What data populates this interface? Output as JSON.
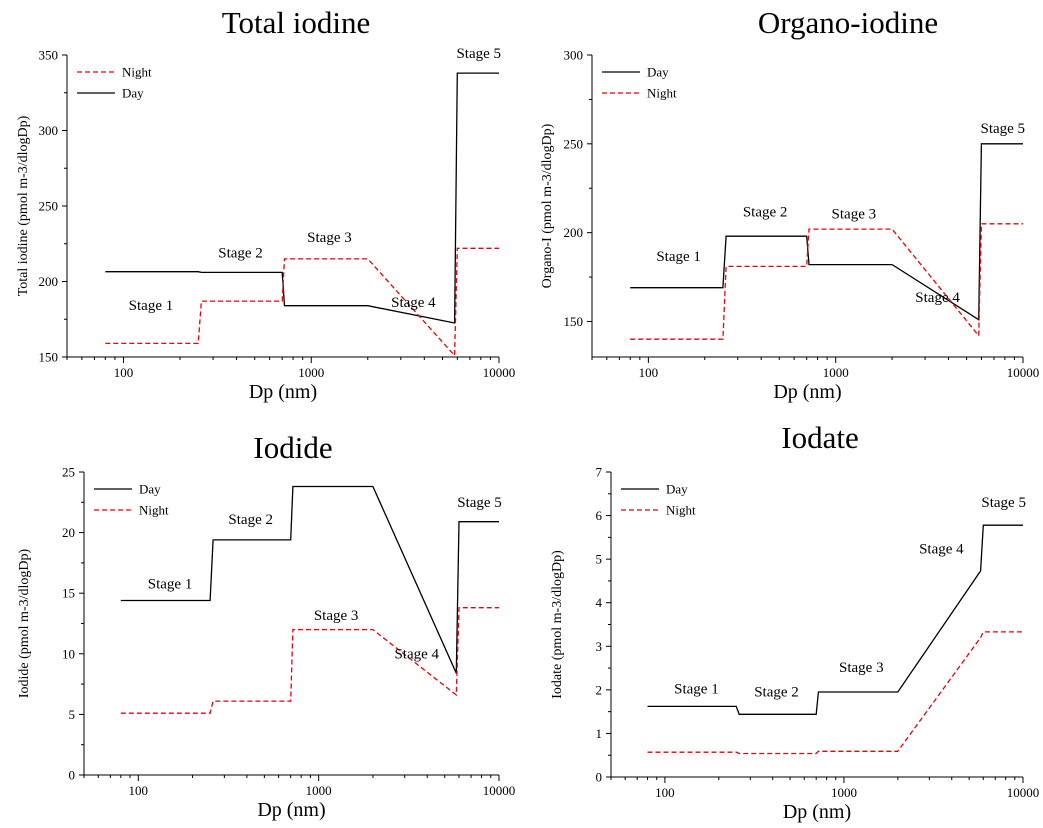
{
  "chart_data": [
    {
      "type": "line",
      "title": "Total iodine",
      "xlabel": "Dp (nm)",
      "ylabel": "Total iodine (pmol m-3/dlogDp)",
      "xscale": "log",
      "xlim": [
        50,
        10000
      ],
      "ylim": [
        150,
        350
      ],
      "xticks": [
        100,
        1000,
        10000
      ],
      "xtick_labels": [
        "100",
        "1000",
        "10000"
      ],
      "yticks": [
        150,
        200,
        250,
        300,
        350
      ],
      "ytick_labels": [
        "150",
        "200",
        "250",
        "300",
        "350"
      ],
      "legend_position": "top-left",
      "legend_order": [
        "Night",
        "Day"
      ],
      "series": [
        {
          "name": "Day",
          "style": "solid",
          "color": "#000000",
          "x": [
            80,
            250,
            260,
            700,
            720,
            2000,
            5800,
            6000,
            10000
          ],
          "y": [
            206.5,
            206.5,
            206,
            206,
            184,
            184,
            172.5,
            338,
            338
          ]
        },
        {
          "name": "Night",
          "style": "dashed",
          "color": "#e8000b",
          "x": [
            80,
            250,
            260,
            700,
            720,
            2000,
            5800,
            6000,
            10000
          ],
          "y": [
            159,
            159,
            187,
            187,
            215,
            215,
            151,
            222,
            222
          ]
        }
      ],
      "annotations": [
        {
          "text": "Stage 1",
          "x": 140,
          "y": 181
        },
        {
          "text": "Stage 2",
          "x": 420,
          "y": 216
        },
        {
          "text": "Stage 3",
          "x": 1250,
          "y": 226
        },
        {
          "text": "Stage 4",
          "x": 3500,
          "y": 183
        },
        {
          "text": "Stage 5",
          "x": 7800,
          "y": 348
        }
      ]
    },
    {
      "type": "line",
      "title": "Organo-iodine",
      "xlabel": "Dp (nm)",
      "ylabel": "Organo-I (pmol m-3/dlogDp)",
      "xscale": "log",
      "xlim": [
        50,
        10000
      ],
      "ylim": [
        130,
        300
      ],
      "xticks": [
        100,
        1000,
        10000
      ],
      "xtick_labels": [
        "100",
        "1000",
        "10000"
      ],
      "yticks": [
        150,
        200,
        250,
        300
      ],
      "ytick_labels": [
        "150",
        "200",
        "250",
        "300"
      ],
      "legend_position": "top-left",
      "legend_order": [
        "Day",
        "Night"
      ],
      "series": [
        {
          "name": "Day",
          "style": "solid",
          "color": "#000000",
          "x": [
            80,
            250,
            260,
            700,
            720,
            2000,
            5800,
            6000,
            10000
          ],
          "y": [
            169,
            169,
            198,
            198,
            182,
            182,
            151,
            250,
            250
          ]
        },
        {
          "name": "Night",
          "style": "dashed",
          "color": "#e8000b",
          "x": [
            80,
            250,
            260,
            700,
            720,
            2000,
            5800,
            6000,
            10000
          ],
          "y": [
            140,
            140,
            181,
            181,
            202,
            202,
            142,
            205,
            205
          ]
        }
      ],
      "annotations": [
        {
          "text": "Stage 1",
          "x": 145,
          "y": 184
        },
        {
          "text": "Stage 2",
          "x": 420,
          "y": 209
        },
        {
          "text": "Stage 3",
          "x": 1250,
          "y": 208
        },
        {
          "text": "Stage 4",
          "x": 3500,
          "y": 161
        },
        {
          "text": "Stage 5",
          "x": 7800,
          "y": 256
        }
      ]
    },
    {
      "type": "line",
      "title": "Iodide",
      "xlabel": "Dp (nm)",
      "ylabel": "Iodide (pmol m-3/dlogDp)",
      "xscale": "log",
      "xlim": [
        50,
        10000
      ],
      "ylim": [
        0,
        25
      ],
      "xticks": [
        100,
        1000,
        10000
      ],
      "xtick_labels": [
        "100",
        "1000",
        "10000"
      ],
      "yticks": [
        0,
        5,
        10,
        15,
        20,
        25
      ],
      "ytick_labels": [
        "0",
        "5",
        "10",
        "15",
        "20",
        "25"
      ],
      "legend_position": "top-left",
      "legend_order": [
        "Day",
        "Night"
      ],
      "series": [
        {
          "name": "Day",
          "style": "solid",
          "color": "#000000",
          "x": [
            80,
            250,
            260,
            700,
            720,
            2000,
            5800,
            6000,
            10000
          ],
          "y": [
            14.4,
            14.4,
            19.4,
            19.4,
            23.8,
            23.8,
            8.4,
            20.9,
            20.9
          ]
        },
        {
          "name": "Night",
          "style": "dashed",
          "color": "#e8000b",
          "x": [
            80,
            250,
            260,
            700,
            720,
            2000,
            5800,
            6000,
            10000
          ],
          "y": [
            5.1,
            5.1,
            6.1,
            6.1,
            12,
            12,
            6.6,
            13.8,
            13.8
          ]
        }
      ],
      "annotations": [
        {
          "text": "Stage 1",
          "x": 150,
          "y": 15.4
        },
        {
          "text": "Stage 2",
          "x": 420,
          "y": 20.7
        },
        {
          "text": "Stage 3",
          "x": 1250,
          "y": 12.8
        },
        {
          "text": "Stage 4",
          "x": 3500,
          "y": 9.6
        },
        {
          "text": "Stage 5",
          "x": 7800,
          "y": 22.1
        }
      ]
    },
    {
      "type": "line",
      "title": "Iodate",
      "xlabel": "Dp (nm)",
      "ylabel": "Iodate (pmol m-3/dlogDp)",
      "xscale": "log",
      "xlim": [
        50,
        10000
      ],
      "ylim": [
        0,
        7
      ],
      "xticks": [
        100,
        1000,
        10000
      ],
      "xtick_labels": [
        "100",
        "1000",
        "10000"
      ],
      "yticks": [
        0,
        1,
        2,
        3,
        4,
        5,
        6,
        7
      ],
      "ytick_labels": [
        "0",
        "1",
        "2",
        "3",
        "4",
        "5",
        "6",
        "7"
      ],
      "legend_position": "top-left",
      "legend_order": [
        "Day",
        "Night"
      ],
      "series": [
        {
          "name": "Day",
          "style": "solid",
          "color": "#000000",
          "x": [
            80,
            250,
            260,
            700,
            720,
            2000,
            5800,
            6000,
            10000
          ],
          "y": [
            1.62,
            1.62,
            1.44,
            1.44,
            1.95,
            1.95,
            4.73,
            5.78,
            5.78
          ]
        },
        {
          "name": "Night",
          "style": "dashed",
          "color": "#e8000b",
          "x": [
            80,
            250,
            260,
            700,
            720,
            2000,
            5800,
            6000,
            10000
          ],
          "y": [
            0.57,
            0.57,
            0.54,
            0.54,
            0.59,
            0.59,
            3.2,
            3.33,
            3.33
          ]
        }
      ],
      "annotations": [
        {
          "text": "Stage 1",
          "x": 150,
          "y": 1.92
        },
        {
          "text": "Stage 2",
          "x": 420,
          "y": 1.85
        },
        {
          "text": "Stage 3",
          "x": 1250,
          "y": 2.41
        },
        {
          "text": "Stage 4",
          "x": 3500,
          "y": 5.13
        },
        {
          "text": "Stage 5",
          "x": 7800,
          "y": 6.2
        }
      ]
    }
  ]
}
